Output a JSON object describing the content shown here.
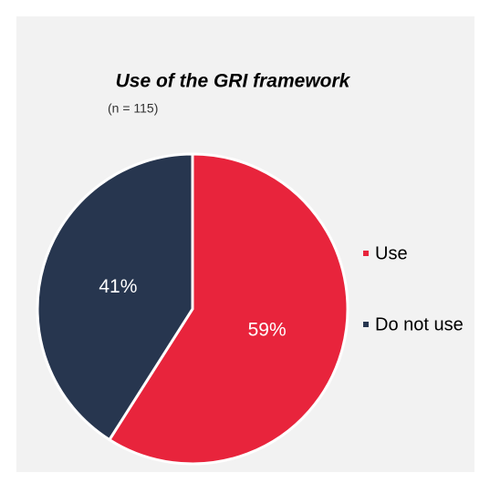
{
  "chart_data": {
    "type": "pie",
    "title": "Use of the GRI framework",
    "subtitle": "(n = 115)",
    "categories": [
      "Use",
      "Do not use"
    ],
    "values": [
      59,
      41
    ],
    "value_labels": [
      "59%",
      "41%"
    ],
    "colors": [
      "#e8243c",
      "#27364f"
    ]
  }
}
